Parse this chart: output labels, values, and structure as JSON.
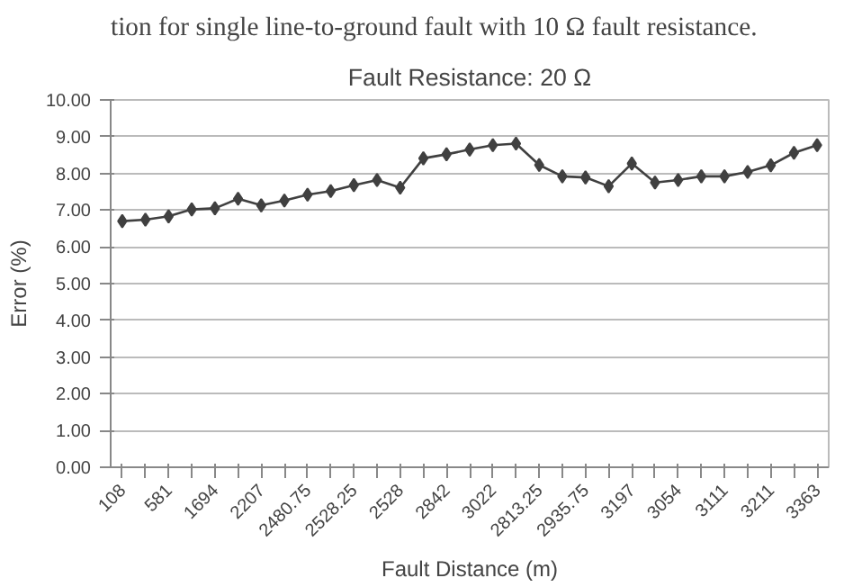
{
  "chart_data": {
    "type": "line",
    "title": "Fault Resistance: 20 Ω",
    "xlabel": "Fault Distance (m)",
    "ylabel": "Error (%)",
    "annotations": [
      "tion for single line-to-ground fault with 10 Ω fault resistance."
    ],
    "categories": [
      "108",
      null,
      "581",
      null,
      "1694",
      null,
      "2207",
      null,
      "2480.75",
      null,
      "2528.25",
      null,
      "2528",
      null,
      "2842",
      null,
      "3022",
      null,
      "2813.25",
      null,
      "2935.75",
      null,
      "3197",
      null,
      "3054",
      null,
      "3111",
      null,
      "3211",
      null,
      "3363"
    ],
    "series": [
      {
        "color": "#404040",
        "values": [
          6.7,
          6.74,
          6.83,
          7.02,
          7.05,
          7.31,
          7.13,
          7.26,
          7.42,
          7.52,
          7.68,
          7.82,
          7.61,
          8.41,
          8.52,
          8.65,
          8.77,
          8.81,
          8.23,
          7.92,
          7.89,
          7.65,
          8.27,
          7.75,
          7.82,
          7.92,
          7.92,
          8.04,
          8.22,
          8.56,
          8.77
        ]
      }
    ],
    "ylim": [
      0,
      10
    ],
    "yticks": [
      {
        "value": 0,
        "label": "0.00"
      },
      {
        "value": 1,
        "label": "1.00"
      },
      {
        "value": 2,
        "label": "2.00"
      },
      {
        "value": 3,
        "label": "3.00"
      },
      {
        "value": 4,
        "label": "4.00"
      },
      {
        "value": 5,
        "label": "5.00"
      },
      {
        "value": 6,
        "label": "6.00"
      },
      {
        "value": 7,
        "label": "7.00"
      },
      {
        "value": 8,
        "label": "8.00"
      },
      {
        "value": 9,
        "label": "9.00"
      },
      {
        "value": 10,
        "label": "10.00"
      }
    ],
    "grid": "y",
    "marker": "diamond",
    "line_style": "solid"
  }
}
